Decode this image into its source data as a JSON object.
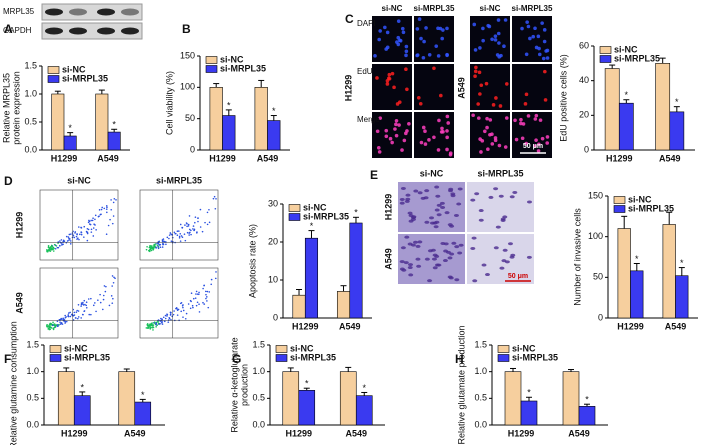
{
  "figure": {
    "panel_labels": [
      "A",
      "B",
      "C",
      "D",
      "E",
      "F",
      "G",
      "H"
    ],
    "blot": {
      "bands": [
        "MRPL35",
        "GAPDH"
      ]
    },
    "edu": {
      "cols": [
        "si-NC",
        "si-MRPL35",
        "si-NC",
        "si-MRPL35"
      ],
      "rows": [
        "DAPI",
        "EdU",
        "Merge"
      ],
      "cells": [
        "H1299",
        "A549"
      ],
      "scale": "50 μm"
    },
    "flow": {
      "cols": [
        "si-NC",
        "si-MRPL35"
      ],
      "rows": [
        "H1299",
        "A549"
      ]
    },
    "invasion": {
      "cols": [
        "si-NC",
        "si-MRPL35"
      ],
      "rows": [
        "H1299",
        "A549"
      ],
      "scale": "50 μm"
    }
  },
  "chart_data": [
    {
      "type": "bar",
      "ylabel": [
        "Relative MRPL35",
        "protein expression"
      ],
      "categories": [
        "H1299",
        "A549"
      ],
      "star": "*",
      "series": [
        {
          "name": "si-NC",
          "color": "#f6cf9e",
          "values": [
            1.0,
            1.0
          ],
          "errors": [
            0.05,
            0.07
          ]
        },
        {
          "name": "si-MRPL35",
          "color": "#3a3af0",
          "values": [
            0.25,
            0.32
          ],
          "errors": [
            0.06,
            0.05
          ]
        }
      ],
      "ylim": [
        0,
        1.5
      ],
      "yticks": [
        {
          "value": 0,
          "label": "0.0"
        },
        {
          "value": 0.5,
          "label": "0.5"
        },
        {
          "value": 1,
          "label": "1.0"
        },
        {
          "value": 1.5,
          "label": "1.5"
        }
      ]
    },
    {
      "type": "bar",
      "ylabel": [
        "Cell viability (%)"
      ],
      "categories": [
        "H1299",
        "A549"
      ],
      "star": "*",
      "series": [
        {
          "name": "si-NC",
          "color": "#f6cf9e",
          "values": [
            100,
            100
          ],
          "errors": [
            6,
            11
          ]
        },
        {
          "name": "si-MRPL35",
          "color": "#3a3af0",
          "values": [
            55,
            47
          ],
          "errors": [
            9,
            8
          ]
        }
      ],
      "ylim": [
        0,
        150
      ],
      "yticks": [
        0,
        50,
        100,
        150
      ]
    },
    {
      "type": "bar",
      "ylabel": [
        "EdU positive cells (%)"
      ],
      "categories": [
        "H1299",
        "A549"
      ],
      "star": "*",
      "series": [
        {
          "name": "si-NC",
          "color": "#f6cf9e",
          "values": [
            47,
            50
          ],
          "errors": [
            2,
            3
          ]
        },
        {
          "name": "si-MRPL35",
          "color": "#3a3af0",
          "values": [
            27,
            22
          ],
          "errors": [
            2,
            3
          ]
        }
      ],
      "ylim": [
        0,
        60
      ],
      "yticks": [
        0,
        20,
        40,
        60
      ]
    },
    {
      "type": "bar",
      "ylabel": [
        "Apoptosis rate (%)"
      ],
      "categories": [
        "H1299",
        "A549"
      ],
      "star": "*",
      "series": [
        {
          "name": "si-NC",
          "color": "#f6cf9e",
          "values": [
            6,
            7
          ],
          "errors": [
            1.5,
            1.5
          ]
        },
        {
          "name": "si-MRPL35",
          "color": "#3a3af0",
          "values": [
            21,
            25
          ],
          "errors": [
            2,
            1.5
          ]
        }
      ],
      "ylim": [
        0,
        30
      ],
      "yticks": [
        0,
        10,
        20,
        30
      ]
    },
    {
      "type": "bar",
      "ylabel": [
        "Number of invasive cells"
      ],
      "categories": [
        "H1299",
        "A549"
      ],
      "star": "*",
      "series": [
        {
          "name": "si-NC",
          "color": "#f6cf9e",
          "values": [
            110,
            115
          ],
          "errors": [
            15,
            15
          ]
        },
        {
          "name": "si-MRPL35",
          "color": "#3a3af0",
          "values": [
            58,
            52
          ],
          "errors": [
            9,
            10
          ]
        }
      ],
      "ylim": [
        0,
        150
      ],
      "yticks": [
        0,
        50,
        100,
        150
      ]
    },
    {
      "type": "bar",
      "ylabel": [
        "Relative glutamine consumption"
      ],
      "categories": [
        "H1299",
        "A549"
      ],
      "star": "*",
      "series": [
        {
          "name": "si-NC",
          "color": "#f6cf9e",
          "values": [
            1.0,
            1.0
          ],
          "errors": [
            0.07,
            0.05
          ]
        },
        {
          "name": "si-MRPL35",
          "color": "#3a3af0",
          "values": [
            0.55,
            0.43
          ],
          "errors": [
            0.07,
            0.05
          ]
        }
      ],
      "ylim": [
        0,
        1.5
      ],
      "yticks": [
        {
          "value": 0,
          "label": "0.0"
        },
        {
          "value": 0.5,
          "label": "0.5"
        },
        {
          "value": 1,
          "label": "1.0"
        },
        {
          "value": 1.5,
          "label": "1.5"
        }
      ]
    },
    {
      "type": "bar",
      "ylabel": [
        "Relative α-ketoglutarate",
        "production"
      ],
      "categories": [
        "H1299",
        "A549"
      ],
      "star": "*",
      "series": [
        {
          "name": "si-NC",
          "color": "#f6cf9e",
          "values": [
            1.0,
            1.0
          ],
          "errors": [
            0.07,
            0.08
          ]
        },
        {
          "name": "si-MRPL35",
          "color": "#3a3af0",
          "values": [
            0.65,
            0.55
          ],
          "errors": [
            0.04,
            0.06
          ]
        }
      ],
      "ylim": [
        0,
        1.5
      ],
      "yticks": [
        {
          "value": 0,
          "label": "0.0"
        },
        {
          "value": 0.5,
          "label": "0.5"
        },
        {
          "value": 1,
          "label": "1.0"
        },
        {
          "value": 1.5,
          "label": "1.5"
        }
      ]
    },
    {
      "type": "bar",
      "ylabel": [
        "Relative glutamate production"
      ],
      "categories": [
        "H1299",
        "A549"
      ],
      "star": "*",
      "series": [
        {
          "name": "si-NC",
          "color": "#f6cf9e",
          "values": [
            1.0,
            1.0
          ],
          "errors": [
            0.06,
            0.04
          ]
        },
        {
          "name": "si-MRPL35",
          "color": "#3a3af0",
          "values": [
            0.45,
            0.35
          ],
          "errors": [
            0.07,
            0.04
          ]
        }
      ],
      "ylim": [
        0,
        1.5
      ],
      "yticks": [
        {
          "value": 0,
          "label": "0.0"
        },
        {
          "value": 0.5,
          "label": "0.5"
        },
        {
          "value": 1,
          "label": "1.0"
        },
        {
          "value": 1.5,
          "label": "1.5"
        }
      ]
    }
  ]
}
